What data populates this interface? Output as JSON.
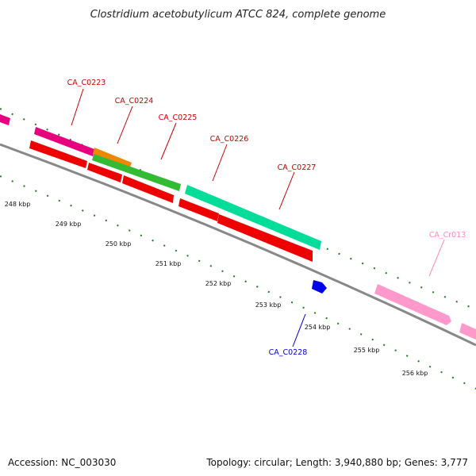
{
  "title": "Clostridium acetobutylicum ATCC 824, complete genome",
  "footer": {
    "accession": "Accession: NC_003030",
    "summary": "Topology: circular; Length: 3,940,880 bp; Genes: 3,777"
  },
  "kbp_labels": [
    "248 kbp",
    "249 kbp",
    "250 kbp",
    "251 kbp",
    "252 kbp",
    "253 kbp",
    "254 kbp",
    "255 kbp",
    "256 kbp"
  ],
  "genes": [
    {
      "label": "CA_C0223",
      "color": "#cc0000"
    },
    {
      "label": "CA_C0224",
      "color": "#cc0000"
    },
    {
      "label": "CA_C0225",
      "color": "#cc0000"
    },
    {
      "label": "CA_C0226",
      "color": "#cc0000"
    },
    {
      "label": "CA_C0227",
      "color": "#cc0000"
    },
    {
      "label": "CA_C0228",
      "color": "#0000cc"
    },
    {
      "label": "CA_Cr013",
      "color": "#ff88bb"
    }
  ],
  "colors": {
    "backbone": "#888888",
    "tick": "#1e7a1e",
    "cds": "#ee0000",
    "magenta": "#e6007e",
    "orange": "#ee8800",
    "green": "#33bb33",
    "aqua": "#00dd99",
    "rrna": "#ff99cc",
    "blue": "#0000ee"
  }
}
